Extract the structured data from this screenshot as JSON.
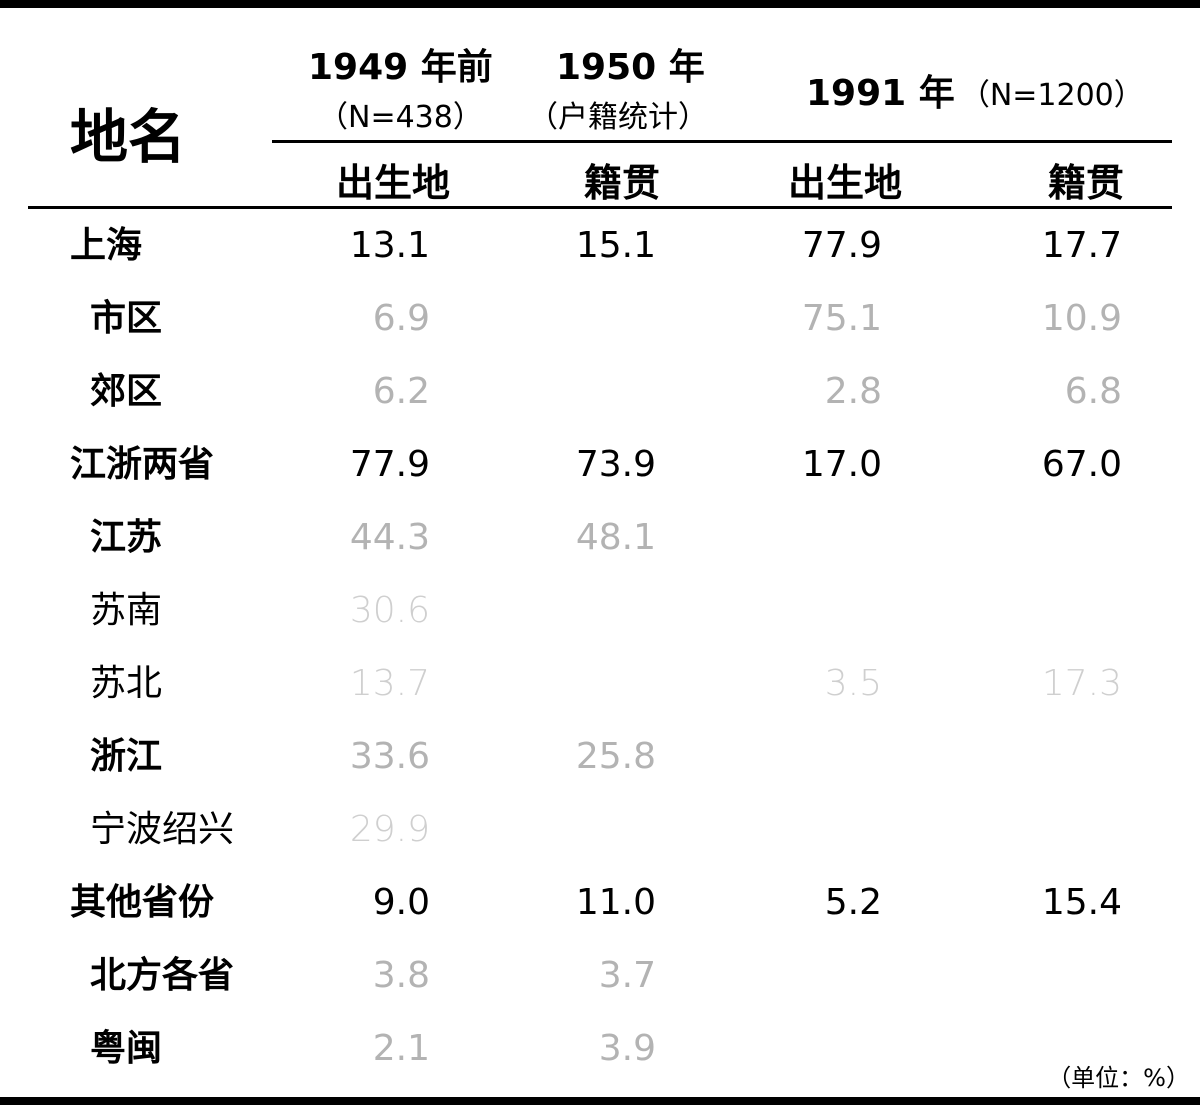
{
  "header": {
    "title": "地名",
    "col1949": {
      "main": "1949 年前",
      "sub": "（N=438）"
    },
    "col1950": {
      "main": "1950 年",
      "sub": "（户籍统计）"
    },
    "col1991": {
      "main": "1991 年",
      "sub": "（N=1200）"
    },
    "sub_cols": [
      "出生地",
      "籍贯",
      "出生地",
      "籍贯"
    ]
  },
  "rows": [
    {
      "name": "上海",
      "v": [
        "13.1",
        "15.1",
        "77.9",
        "17.7"
      ]
    },
    {
      "name": "市区",
      "v": [
        "6.9",
        "",
        "75.1",
        "10.9"
      ]
    },
    {
      "name": "郊区",
      "v": [
        "6.2",
        "",
        "2.8",
        "6.8"
      ]
    },
    {
      "name": "江浙两省",
      "v": [
        "77.9",
        "73.9",
        "17.0",
        "67.0"
      ]
    },
    {
      "name": "江苏",
      "v": [
        "44.3",
        "48.1",
        "",
        ""
      ]
    },
    {
      "name": "苏南",
      "v": [
        "30.6",
        "",
        "",
        ""
      ]
    },
    {
      "name": "苏北",
      "v": [
        "13.7",
        "",
        "3.5",
        "17.3"
      ]
    },
    {
      "name": "浙江",
      "v": [
        "33.6",
        "25.8",
        "",
        ""
      ]
    },
    {
      "name": "宁波绍兴",
      "v": [
        "29.9",
        "",
        "",
        ""
      ]
    },
    {
      "name": "其他省份",
      "v": [
        "9.0",
        "11.0",
        "5.2",
        "15.4"
      ]
    },
    {
      "name": "北方各省",
      "v": [
        "3.8",
        "3.7",
        "",
        ""
      ]
    },
    {
      "name": "粤闽",
      "v": [
        "2.1",
        "3.9",
        "",
        ""
      ]
    }
  ],
  "unit_note": "（单位：%）"
}
